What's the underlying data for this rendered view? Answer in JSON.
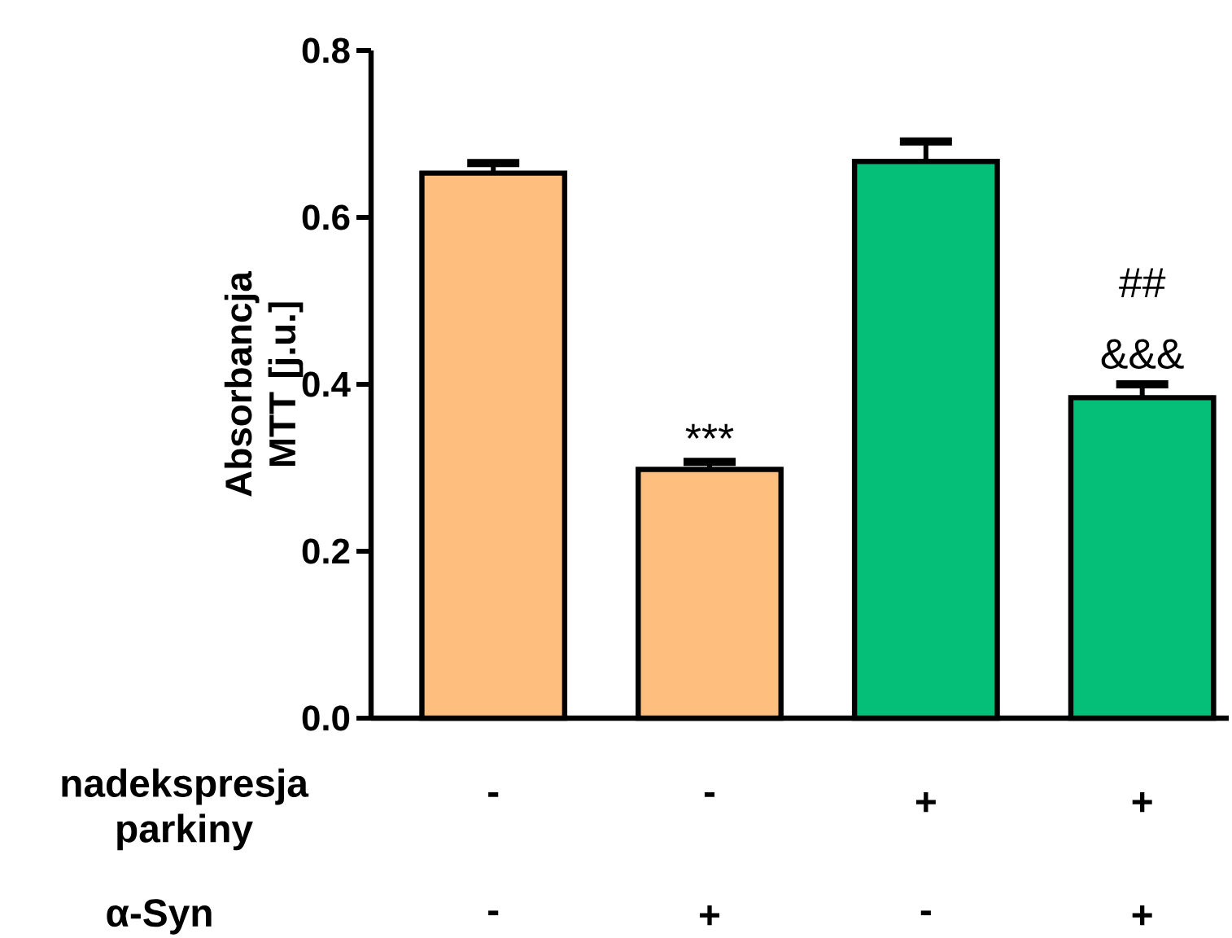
{
  "chart_data": {
    "type": "bar",
    "ylabel": "Absorbancja MTT [j.u.]",
    "categories": [
      "-",
      "-",
      "+",
      "+"
    ],
    "values": [
      0.653,
      0.298,
      0.667,
      0.384
    ],
    "errors": [
      [
        0.653,
        0.665
      ],
      [
        0.298,
        0.307
      ],
      [
        0.667,
        0.691
      ],
      [
        0.384,
        0.4
      ]
    ],
    "colors": [
      "#fdbe7e",
      "#fdbe7e",
      "#05be78",
      "#05be78"
    ],
    "ylim": [
      0,
      0.8
    ],
    "yticks": [
      {
        "value": 0,
        "label": "0.0"
      },
      {
        "value": 0.2,
        "label": "0.2"
      },
      {
        "value": 0.4,
        "label": "0.4"
      },
      {
        "value": 0.6,
        "label": "0.6"
      },
      {
        "value": 0.8,
        "label": "0.8"
      }
    ],
    "annotations": [
      "nadekspresja parkiny",
      "α-Syn",
      "-",
      "+",
      "-",
      "+",
      "***",
      "&&&",
      "##"
    ]
  }
}
